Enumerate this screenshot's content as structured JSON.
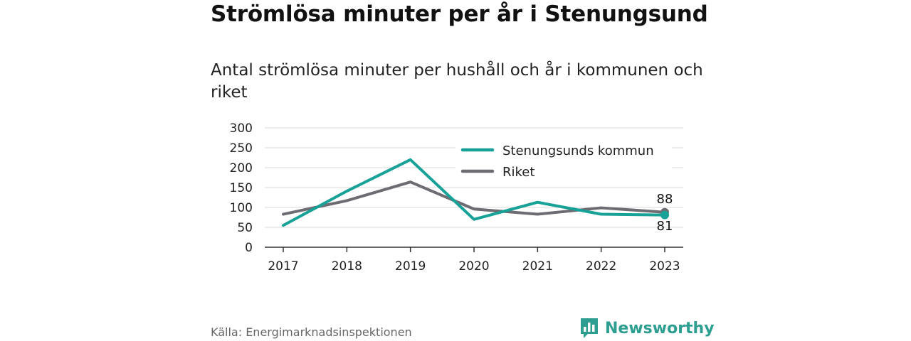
{
  "header": {
    "title": "Strömlösa minuter per år i Stenungsund",
    "subtitle": "Antal strömlösa minuter per hushåll och år i kommunen och riket"
  },
  "footer": {
    "source": "Källa: Energimarknadsinspektionen",
    "logo_text": "Newsworthy",
    "logo_icon": "bar-chart-icon",
    "logo_color": "#2d9e8f"
  },
  "chart_data": {
    "type": "line",
    "title": "Strömlösa minuter per år i Stenungsund",
    "subtitle": "Antal strömlösa minuter per hushåll och år i kommunen och riket",
    "xlabel": "",
    "ylabel": "",
    "categories": [
      "2017",
      "2018",
      "2019",
      "2020",
      "2021",
      "2022",
      "2023"
    ],
    "ylim": [
      0,
      300
    ],
    "yticks": [
      0,
      50,
      100,
      150,
      200,
      250,
      300
    ],
    "grid": true,
    "legend_position": "top-right",
    "series": [
      {
        "name": "Stenungsunds kommun",
        "color": "#17a197",
        "values": [
          55,
          141,
          220,
          70,
          113,
          83,
          81
        ],
        "end_label": "81"
      },
      {
        "name": "Riket",
        "color": "#6e6c72",
        "values": [
          83,
          117,
          164,
          96,
          83,
          99,
          88
        ],
        "end_label": "88"
      }
    ]
  }
}
